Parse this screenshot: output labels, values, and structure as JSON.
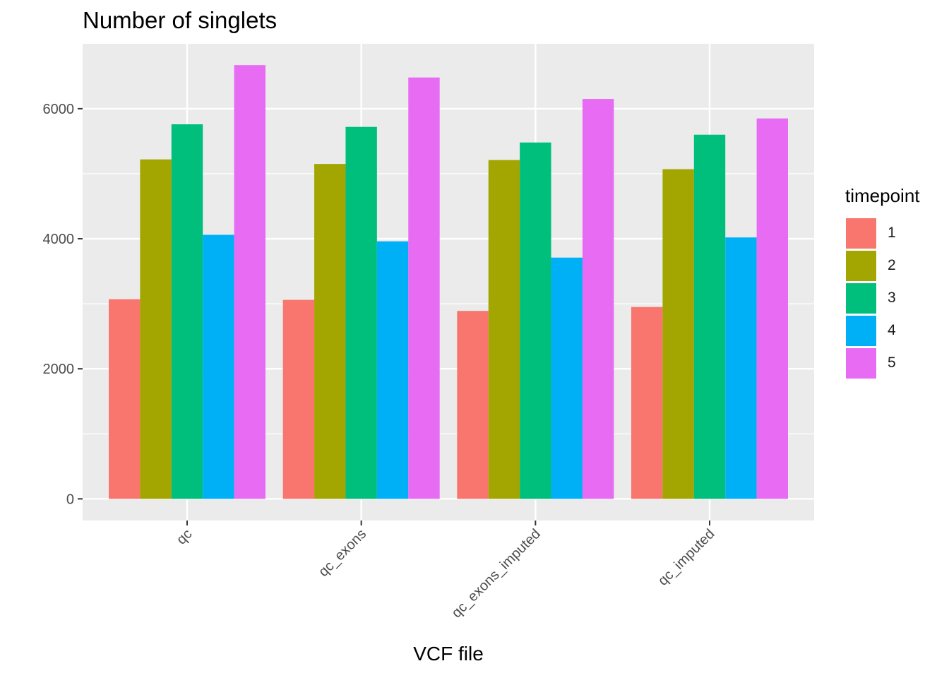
{
  "chart_data": {
    "type": "bar",
    "title": "Number of singlets",
    "xlabel": "VCF file",
    "ylabel": "",
    "categories": [
      "qc",
      "qc_exons",
      "qc_exons_imputed",
      "qc_imputed"
    ],
    "series": [
      {
        "name": "1",
        "color": "#F8766D",
        "values": [
          3070,
          3060,
          2890,
          2950
        ]
      },
      {
        "name": "2",
        "color": "#A3A500",
        "values": [
          5220,
          5150,
          5210,
          5070
        ]
      },
      {
        "name": "3",
        "color": "#00BF7D",
        "values": [
          5760,
          5720,
          5480,
          5600
        ]
      },
      {
        "name": "4",
        "color": "#00B0F6",
        "values": [
          4060,
          3960,
          3710,
          4020
        ]
      },
      {
        "name": "5",
        "color": "#E76BF3",
        "values": [
          6670,
          6480,
          6150,
          5850
        ]
      }
    ],
    "yticks": [
      0,
      2000,
      4000,
      6000
    ],
    "ylim": [
      -333,
      6998
    ],
    "grid": true,
    "legend": {
      "title": "timepoint",
      "position": "right"
    }
  }
}
